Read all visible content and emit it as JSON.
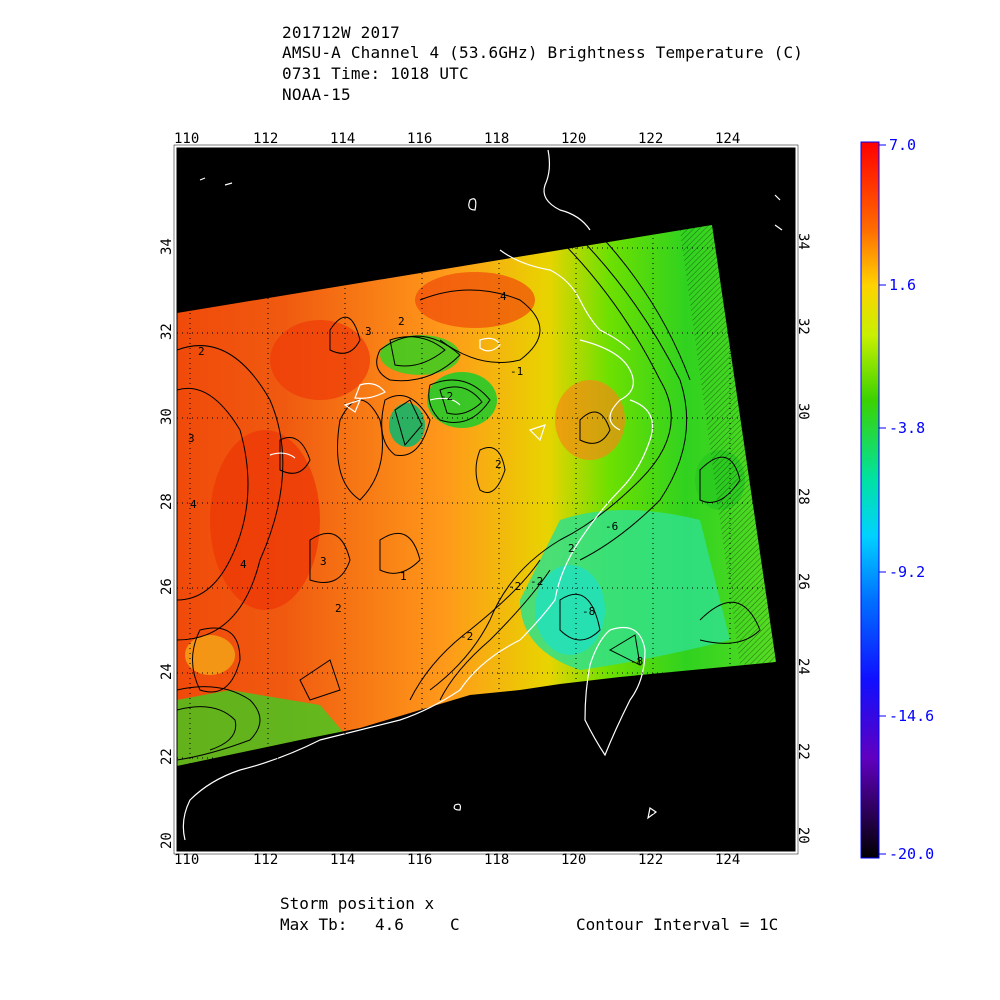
{
  "header": {
    "line1": "201712W 2017",
    "line2": "AMSU-A Channel 4 (53.6GHz) Brightness Temperature (C)",
    "line3": "0731 Time: 1018 UTC",
    "line4": "NOAA-15"
  },
  "map": {
    "lon_ticks": [
      "110",
      "112",
      "114",
      "116",
      "118",
      "120",
      "122",
      "124"
    ],
    "lat_ticks": [
      "20",
      "22",
      "24",
      "26",
      "28",
      "30",
      "32",
      "34"
    ],
    "lon_range": [
      109.7,
      125.8
    ],
    "lat_range": [
      19.8,
      35.8
    ],
    "background_color": "#000000",
    "coastline_color": "#ffffff",
    "contour_color": "#000000",
    "grid": "dotted",
    "contour_labels": [
      "2",
      "3",
      "4",
      "3",
      "2",
      "-2",
      "2",
      "-1",
      "4",
      "-2",
      "-2",
      "2",
      "-2",
      "-6",
      "-8",
      "-8",
      "1",
      "2",
      "4",
      "3"
    ]
  },
  "colorbar": {
    "labels": [
      "7.0",
      "1.6",
      "-3.8",
      "-9.2",
      "-14.6",
      "-20.0"
    ],
    "min": -20.0,
    "max": 7.0
  },
  "footer": {
    "storm_position": "Storm position x",
    "max_tb_label": "Max Tb:",
    "max_tb_value": "4.6",
    "max_tb_unit": "C",
    "contour_interval": "Contour Interval = 1C"
  }
}
